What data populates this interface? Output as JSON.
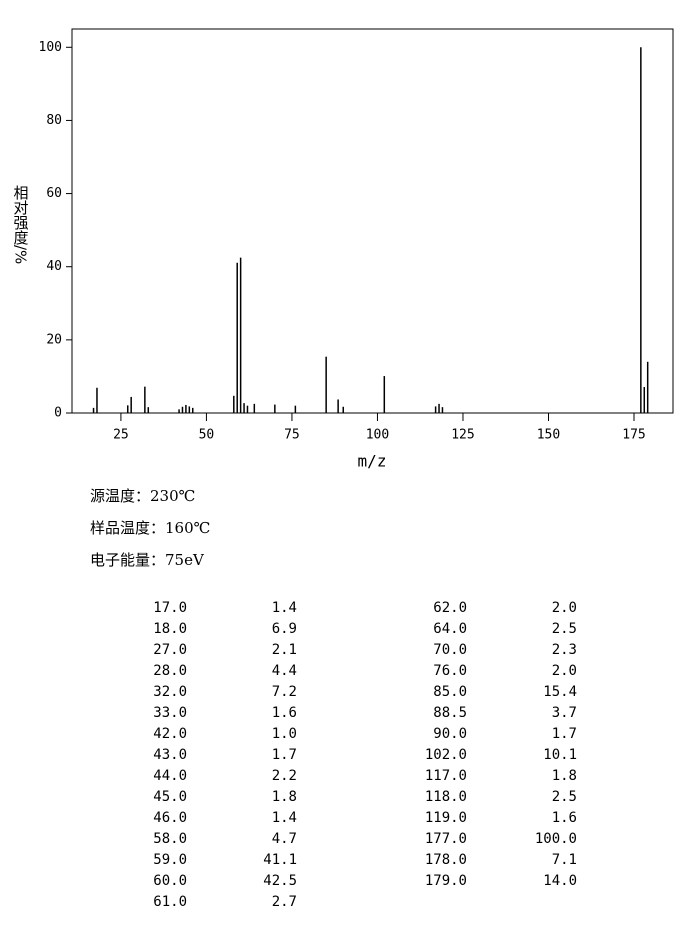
{
  "chart_data": {
    "type": "bar",
    "xlabel": "m/z",
    "ylabel": "相对强度/%",
    "x": [
      17,
      18,
      27,
      28,
      32,
      33,
      42,
      43,
      44,
      45,
      46,
      58,
      59,
      60,
      61,
      62,
      64,
      70,
      76,
      85,
      88.5,
      90,
      102,
      117,
      118,
      119,
      177,
      178,
      179
    ],
    "x_labels": [
      "17.0",
      "18.0",
      "27.0",
      "28.0",
      "32.0",
      "33.0",
      "42.0",
      "43.0",
      "44.0",
      "45.0",
      "46.0",
      "58.0",
      "59.0",
      "60.0",
      "61.0",
      "62.0",
      "64.0",
      "70.0",
      "76.0",
      "85.0",
      "88.5",
      "90.0",
      "102.0",
      "117.0",
      "118.0",
      "119.0",
      "177.0",
      "178.0",
      "179.0"
    ],
    "values": [
      1.4,
      6.9,
      2.1,
      4.4,
      7.2,
      1.6,
      1.0,
      1.7,
      2.2,
      1.8,
      1.4,
      4.7,
      41.1,
      42.5,
      2.7,
      2.0,
      2.5,
      2.3,
      2.0,
      15.4,
      3.7,
      1.7,
      10.1,
      1.8,
      2.5,
      1.6,
      100,
      7.1,
      14.0
    ],
    "value_labels": [
      "1.4",
      "6.9",
      "2.1",
      "4.4",
      "7.2",
      "1.6",
      "1.0",
      "1.7",
      "2.2",
      "1.8",
      "1.4",
      "4.7",
      "41.1",
      "42.5",
      "2.7",
      "2.0",
      "2.5",
      "2.3",
      "2.0",
      "15.4",
      "3.7",
      "1.7",
      "10.1",
      "1.8",
      "2.5",
      "1.6",
      "100.0",
      "7.1",
      "14.0"
    ],
    "color": "#000000",
    "xlim": [
      10.7,
      186.4
    ],
    "xticks": [
      25,
      50,
      75,
      100,
      125,
      150,
      175
    ],
    "ylim": [
      0,
      105
    ],
    "yticks": [
      0,
      20,
      40,
      60,
      80,
      100
    ],
    "notes": [
      "源温度：230℃",
      "样品温度：160℃",
      "电子能量：75eV"
    ]
  }
}
